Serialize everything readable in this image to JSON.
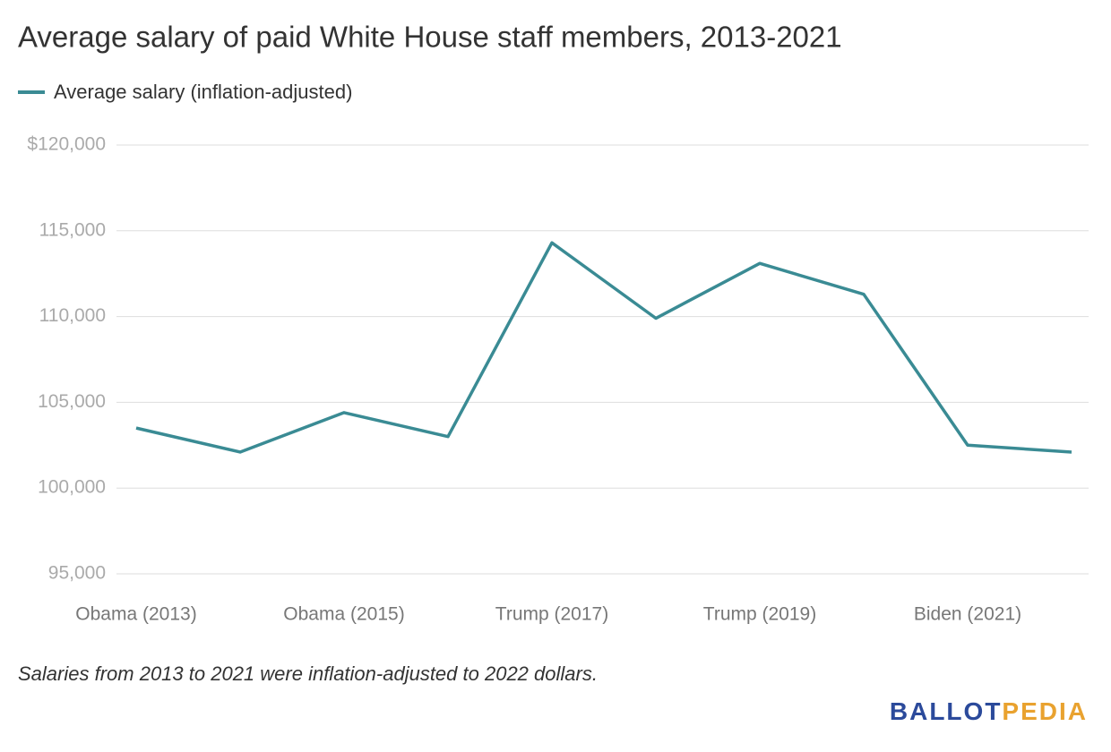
{
  "chart_data": {
    "type": "line",
    "title": "Average salary of paid White House staff members, 2013-2021",
    "categories": [
      "Obama (2013)",
      null,
      "Obama (2015)",
      null,
      "Trump (2017)",
      null,
      "Trump (2019)",
      null,
      "Biden (2021)",
      null
    ],
    "series": [
      {
        "name": "Average salary (inflation-adjusted)",
        "color": "#3a8b94",
        "values": [
          103500,
          102100,
          104400,
          103000,
          114300,
          109900,
          113100,
          111300,
          102500,
          102100
        ]
      }
    ],
    "ylim": [
      95000,
      120000
    ],
    "yticks": [
      {
        "value": 95000,
        "label": "95,000"
      },
      {
        "value": 100000,
        "label": "100,000"
      },
      {
        "value": 105000,
        "label": "105,000"
      },
      {
        "value": 110000,
        "label": "110,000"
      },
      {
        "value": 115000,
        "label": "115,000"
      },
      {
        "value": 120000,
        "label": "$120,000"
      }
    ],
    "grid": true,
    "note": "Salaries from 2013 to 2021 were inflation-adjusted to 2022 dollars.",
    "logo": [
      "BALLOT",
      "PEDIA"
    ]
  }
}
